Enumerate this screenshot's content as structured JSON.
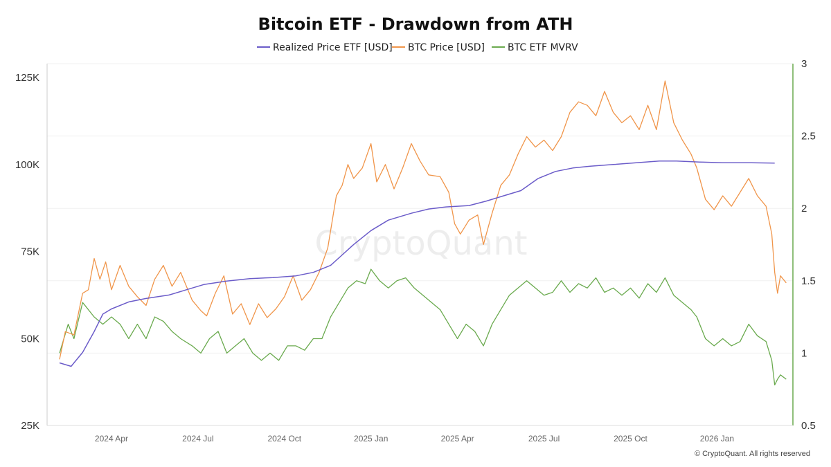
{
  "chart_data": {
    "type": "line",
    "title": "Bitcoin ETF - Drawdown from ATH",
    "watermark": "CryptoQuant",
    "copyright": "© CryptoQuant. All rights reserved",
    "x_ticks": [
      "2024 Apr",
      "2024 Jul",
      "2024 Oct",
      "2025 Jan",
      "2025 Apr",
      "2025 Jul",
      "2025 Oct",
      "2026 Jan"
    ],
    "x_tick_months": [
      3,
      6,
      9,
      12,
      15,
      18,
      21,
      24
    ],
    "x_range_months": [
      1.2,
      26.2
    ],
    "y_left": {
      "ticks": [
        "125K",
        "100K",
        "75K",
        "50K",
        "25K"
      ],
      "tick_values": [
        125000,
        100000,
        75000,
        50000,
        25000
      ],
      "range": [
        25000,
        125000
      ]
    },
    "y_right": {
      "ticks": [
        "3",
        "2.5",
        "2",
        "1.5",
        "1",
        "0.5"
      ],
      "tick_values": [
        3,
        2.5,
        2,
        1.5,
        1,
        0.5
      ],
      "range": [
        0.5,
        3
      ]
    },
    "legend_position": "top-center",
    "series": [
      {
        "name": "Realized Price ETF [USD]",
        "axis": "left",
        "color": "#6b5cc9",
        "points": [
          [
            1.2,
            43000
          ],
          [
            1.6,
            42000
          ],
          [
            2.0,
            46000
          ],
          [
            2.4,
            52000
          ],
          [
            2.7,
            57000
          ],
          [
            3.0,
            58500
          ],
          [
            3.6,
            60500
          ],
          [
            4.2,
            61500
          ],
          [
            5.0,
            62500
          ],
          [
            5.6,
            64000
          ],
          [
            6.2,
            65500
          ],
          [
            7.0,
            66500
          ],
          [
            7.8,
            67200
          ],
          [
            8.6,
            67500
          ],
          [
            9.4,
            68000
          ],
          [
            10.0,
            69000
          ],
          [
            10.6,
            71000
          ],
          [
            11.0,
            74000
          ],
          [
            11.4,
            77000
          ],
          [
            12.0,
            81000
          ],
          [
            12.6,
            84000
          ],
          [
            13.4,
            86000
          ],
          [
            14.0,
            87200
          ],
          [
            14.6,
            87800
          ],
          [
            15.4,
            88200
          ],
          [
            16.0,
            89500
          ],
          [
            16.6,
            91000
          ],
          [
            17.2,
            92500
          ],
          [
            17.8,
            96000
          ],
          [
            18.4,
            98000
          ],
          [
            19.0,
            99000
          ],
          [
            19.6,
            99500
          ],
          [
            20.4,
            100000
          ],
          [
            21.2,
            100500
          ],
          [
            22.0,
            101000
          ],
          [
            22.6,
            101000
          ],
          [
            23.4,
            100700
          ],
          [
            24.2,
            100500
          ],
          [
            25.2,
            100500
          ],
          [
            26.0,
            100400
          ]
        ]
      },
      {
        "name": "BTC Price [USD]",
        "axis": "left",
        "color": "#f0954a",
        "points": [
          [
            1.2,
            44000
          ],
          [
            1.4,
            52000
          ],
          [
            1.7,
            51000
          ],
          [
            2.0,
            63000
          ],
          [
            2.2,
            64000
          ],
          [
            2.4,
            73000
          ],
          [
            2.6,
            67000
          ],
          [
            2.8,
            72000
          ],
          [
            3.0,
            64000
          ],
          [
            3.3,
            71000
          ],
          [
            3.6,
            65000
          ],
          [
            3.9,
            62000
          ],
          [
            4.2,
            59500
          ],
          [
            4.5,
            67000
          ],
          [
            4.8,
            71000
          ],
          [
            5.1,
            65000
          ],
          [
            5.4,
            69000
          ],
          [
            5.8,
            61000
          ],
          [
            6.1,
            58000
          ],
          [
            6.3,
            56500
          ],
          [
            6.6,
            63000
          ],
          [
            6.9,
            68000
          ],
          [
            7.2,
            57000
          ],
          [
            7.5,
            60000
          ],
          [
            7.8,
            54000
          ],
          [
            8.1,
            60000
          ],
          [
            8.4,
            56000
          ],
          [
            8.7,
            58500
          ],
          [
            9.0,
            62000
          ],
          [
            9.3,
            68000
          ],
          [
            9.6,
            61000
          ],
          [
            9.9,
            64000
          ],
          [
            10.2,
            69000
          ],
          [
            10.5,
            76000
          ],
          [
            10.8,
            91000
          ],
          [
            11.0,
            94000
          ],
          [
            11.2,
            100000
          ],
          [
            11.4,
            96000
          ],
          [
            11.7,
            99000
          ],
          [
            12.0,
            106000
          ],
          [
            12.2,
            95000
          ],
          [
            12.5,
            100000
          ],
          [
            12.8,
            93000
          ],
          [
            13.1,
            99000
          ],
          [
            13.4,
            106000
          ],
          [
            13.7,
            101000
          ],
          [
            14.0,
            97000
          ],
          [
            14.4,
            96500
          ],
          [
            14.7,
            92000
          ],
          [
            14.9,
            83000
          ],
          [
            15.1,
            80000
          ],
          [
            15.4,
            84000
          ],
          [
            15.7,
            85500
          ],
          [
            15.9,
            77000
          ],
          [
            16.2,
            86000
          ],
          [
            16.5,
            94000
          ],
          [
            16.8,
            97000
          ],
          [
            17.1,
            103000
          ],
          [
            17.4,
            108000
          ],
          [
            17.7,
            105000
          ],
          [
            18.0,
            107000
          ],
          [
            18.3,
            104000
          ],
          [
            18.6,
            108000
          ],
          [
            18.9,
            115000
          ],
          [
            19.2,
            118000
          ],
          [
            19.5,
            117000
          ],
          [
            19.8,
            114000
          ],
          [
            20.1,
            121000
          ],
          [
            20.4,
            115000
          ],
          [
            20.7,
            112000
          ],
          [
            21.0,
            114000
          ],
          [
            21.3,
            110000
          ],
          [
            21.6,
            117000
          ],
          [
            21.9,
            110000
          ],
          [
            22.2,
            124000
          ],
          [
            22.5,
            112000
          ],
          [
            22.8,
            107000
          ],
          [
            23.1,
            103000
          ],
          [
            23.3,
            99000
          ],
          [
            23.6,
            90000
          ],
          [
            23.9,
            87000
          ],
          [
            24.2,
            91000
          ],
          [
            24.5,
            88000
          ],
          [
            24.8,
            92000
          ],
          [
            25.1,
            96000
          ],
          [
            25.4,
            91000
          ],
          [
            25.7,
            88000
          ],
          [
            25.9,
            80000
          ],
          [
            26.0,
            69000
          ],
          [
            26.1,
            63000
          ],
          [
            26.2,
            68000
          ],
          [
            26.4,
            66000
          ]
        ]
      },
      {
        "name": "BTC ETF MVRV",
        "axis": "right",
        "color": "#6aaa4e",
        "points": [
          [
            1.2,
            1.0
          ],
          [
            1.5,
            1.2
          ],
          [
            1.7,
            1.1
          ],
          [
            2.0,
            1.35
          ],
          [
            2.2,
            1.3
          ],
          [
            2.4,
            1.25
          ],
          [
            2.7,
            1.2
          ],
          [
            3.0,
            1.25
          ],
          [
            3.3,
            1.2
          ],
          [
            3.6,
            1.1
          ],
          [
            3.9,
            1.2
          ],
          [
            4.2,
            1.1
          ],
          [
            4.5,
            1.25
          ],
          [
            4.8,
            1.22
          ],
          [
            5.1,
            1.15
          ],
          [
            5.4,
            1.1
          ],
          [
            5.8,
            1.05
          ],
          [
            6.1,
            1.0
          ],
          [
            6.4,
            1.1
          ],
          [
            6.7,
            1.15
          ],
          [
            7.0,
            1.0
          ],
          [
            7.3,
            1.05
          ],
          [
            7.6,
            1.1
          ],
          [
            7.9,
            1.0
          ],
          [
            8.2,
            0.95
          ],
          [
            8.5,
            1.0
          ],
          [
            8.8,
            0.95
          ],
          [
            9.1,
            1.05
          ],
          [
            9.4,
            1.05
          ],
          [
            9.7,
            1.02
          ],
          [
            10.0,
            1.1
          ],
          [
            10.3,
            1.1
          ],
          [
            10.6,
            1.25
          ],
          [
            10.9,
            1.35
          ],
          [
            11.2,
            1.45
          ],
          [
            11.5,
            1.5
          ],
          [
            11.8,
            1.48
          ],
          [
            12.0,
            1.58
          ],
          [
            12.3,
            1.5
          ],
          [
            12.6,
            1.45
          ],
          [
            12.9,
            1.5
          ],
          [
            13.2,
            1.52
          ],
          [
            13.5,
            1.45
          ],
          [
            13.8,
            1.4
          ],
          [
            14.1,
            1.35
          ],
          [
            14.4,
            1.3
          ],
          [
            14.7,
            1.2
          ],
          [
            15.0,
            1.1
          ],
          [
            15.3,
            1.2
          ],
          [
            15.6,
            1.15
          ],
          [
            15.9,
            1.05
          ],
          [
            16.2,
            1.2
          ],
          [
            16.5,
            1.3
          ],
          [
            16.8,
            1.4
          ],
          [
            17.1,
            1.45
          ],
          [
            17.4,
            1.5
          ],
          [
            17.7,
            1.45
          ],
          [
            18.0,
            1.4
          ],
          [
            18.3,
            1.42
          ],
          [
            18.6,
            1.5
          ],
          [
            18.9,
            1.42
          ],
          [
            19.2,
            1.48
          ],
          [
            19.5,
            1.45
          ],
          [
            19.8,
            1.52
          ],
          [
            20.1,
            1.42
          ],
          [
            20.4,
            1.45
          ],
          [
            20.7,
            1.4
          ],
          [
            21.0,
            1.45
          ],
          [
            21.3,
            1.38
          ],
          [
            21.6,
            1.48
          ],
          [
            21.9,
            1.42
          ],
          [
            22.2,
            1.52
          ],
          [
            22.5,
            1.4
          ],
          [
            22.8,
            1.35
          ],
          [
            23.1,
            1.3
          ],
          [
            23.3,
            1.25
          ],
          [
            23.6,
            1.1
          ],
          [
            23.9,
            1.05
          ],
          [
            24.2,
            1.1
          ],
          [
            24.5,
            1.05
          ],
          [
            24.8,
            1.08
          ],
          [
            25.1,
            1.2
          ],
          [
            25.4,
            1.12
          ],
          [
            25.7,
            1.08
          ],
          [
            25.9,
            0.95
          ],
          [
            26.0,
            0.78
          ],
          [
            26.1,
            0.82
          ],
          [
            26.2,
            0.85
          ],
          [
            26.4,
            0.82
          ]
        ]
      }
    ]
  }
}
